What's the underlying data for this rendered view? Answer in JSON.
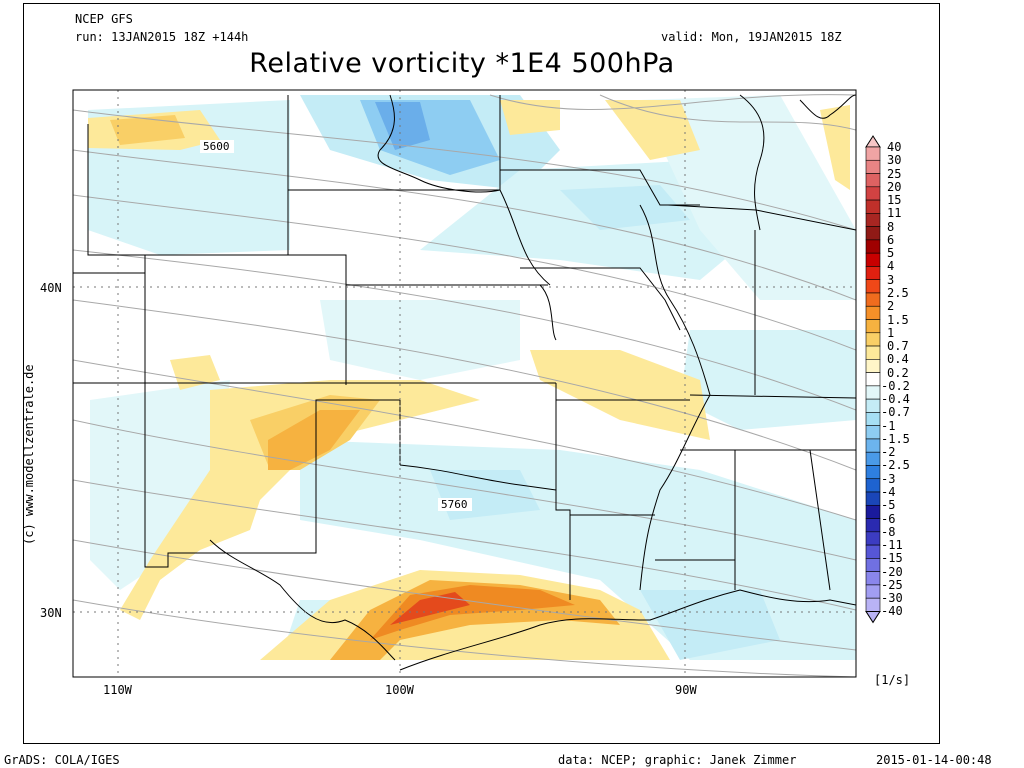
{
  "header": {
    "model": "NCEP GFS",
    "run": "run: 13JAN2015 18Z +144h",
    "valid": "valid: Mon, 19JAN2015 18Z",
    "title": "Relative vorticity *1E4 500hPa"
  },
  "map": {
    "region": "Central and Southern United States",
    "lat_labels": [
      "40N",
      "30N"
    ],
    "lon_labels": [
      "110W",
      "100W",
      "90W"
    ],
    "contour_labels": [
      "5600",
      "5760"
    ],
    "contour_units_note": "500hPa geopotential height contours (gpm)"
  },
  "colorbar": {
    "levels": [
      "40",
      "30",
      "25",
      "20",
      "15",
      "11",
      "8",
      "6",
      "5",
      "4",
      "3",
      "2.5",
      "2",
      "1.5",
      "1",
      "0.7",
      "0.4",
      "0.2",
      "-0.2",
      "-0.4",
      "-0.7",
      "-1",
      "-1.5",
      "-2",
      "-2.5",
      "-3",
      "-4",
      "-5",
      "-6",
      "-8",
      "-11",
      "-15",
      "-20",
      "-25",
      "-30",
      "-40"
    ],
    "units": "[1/s]",
    "colors": {
      "pos_top": "#f7c6c6",
      "pos_mid": "#c0302a",
      "pos_orange": "#f3a42c",
      "pos_light": "#fde99a",
      "neutral": "#ffffff",
      "neg_light": "#d7f4f8",
      "neg_mid": "#6cb4ee",
      "neg_dark": "#1a1a9c",
      "neg_low": "#b9b3f5"
    }
  },
  "footer": {
    "left": "GrADS: COLA/IGES",
    "center": "data: NCEP; graphic: Janek Zimmer",
    "right": "2015-01-14-00:48"
  },
  "credit": "(c) www.modellzentrale.de"
}
